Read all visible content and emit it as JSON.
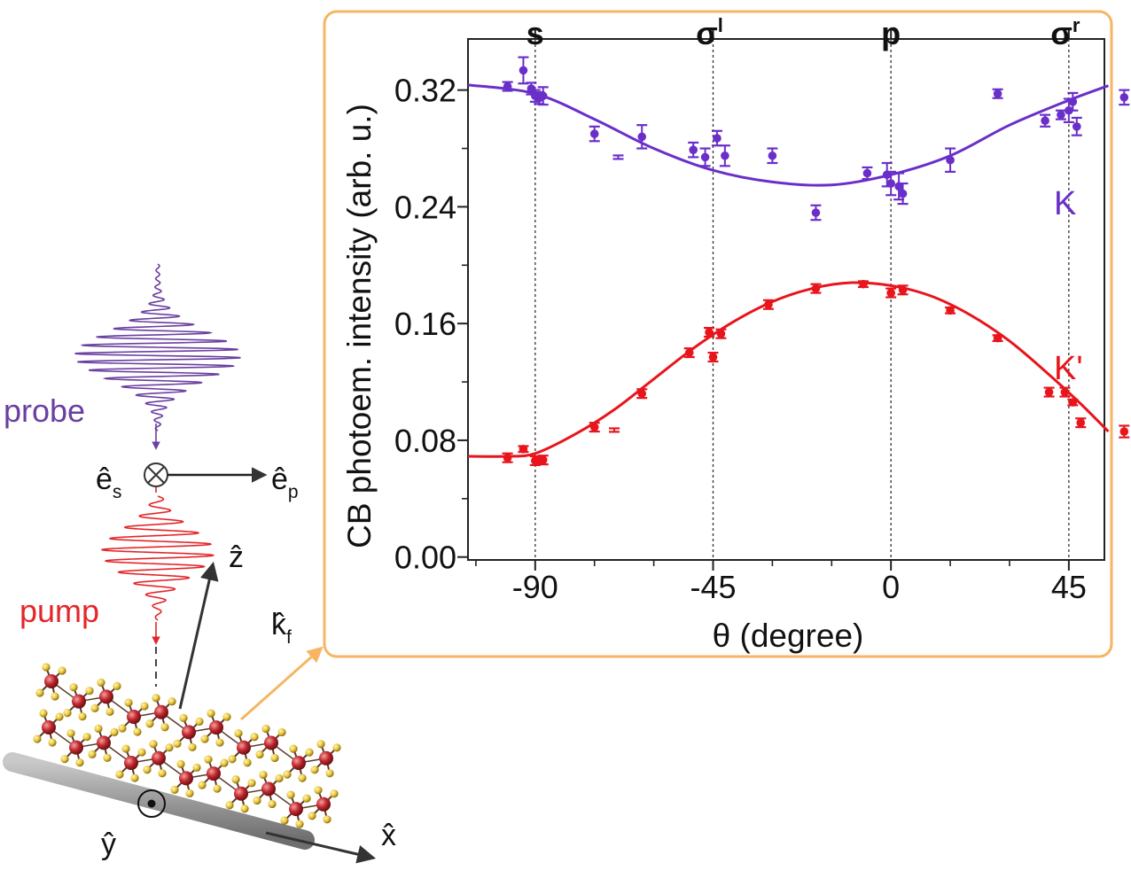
{
  "schematic": {
    "probe_label": "probe",
    "pump_label": "pump",
    "es_label": "ê",
    "es_sub": "s",
    "ep_label": "ê",
    "ep_sub": "p",
    "z_label": "ẑ",
    "kf_label": "k̂",
    "kf_sub": "f",
    "x_label": "x̂",
    "y_label": "ŷ",
    "colors": {
      "probe": "#6a3fa0",
      "pump": "#e3262a",
      "arrow": "#333333",
      "inset_frame": "#f7b563",
      "substrate": "#9a9a9a",
      "atom_red": "#c0272d",
      "atom_yellow": "#e8c436"
    }
  },
  "chart_data": {
    "type": "scatter",
    "xlabel": "θ (degree)",
    "ylabel": "CB photoem. intensity (arb. u.)",
    "xlim": [
      -107,
      54
    ],
    "ylim": [
      -0.002,
      0.355
    ],
    "xticks": [
      -90,
      -45,
      0,
      45
    ],
    "xtick_labels": [
      "-90",
      "-45",
      "0",
      "45"
    ],
    "yticks": [
      0.0,
      0.08,
      0.16,
      0.24,
      0.32
    ],
    "ytick_labels": [
      "0.00",
      "0.08",
      "0.16",
      "0.24",
      "0.32"
    ],
    "grid": false,
    "polarization_markers": [
      {
        "label": "s",
        "sup": "",
        "x": -90
      },
      {
        "label": "σ",
        "sup": "l",
        "x": -45
      },
      {
        "label": "p",
        "sup": "",
        "x": 0
      },
      {
        "label": "σ",
        "sup": "r",
        "x": 45
      }
    ],
    "series": [
      {
        "name": "K",
        "color": "#6a2fc9",
        "points": [
          {
            "x": -97,
            "y": 0.3225,
            "err": 0.003
          },
          {
            "x": -93,
            "y": 0.3335,
            "err": 0.009
          },
          {
            "x": -91,
            "y": 0.321,
            "err": 0.004
          },
          {
            "x": -90,
            "y": 0.316,
            "err": 0.004
          },
          {
            "x": -89,
            "y": 0.3145,
            "err": 0.004
          },
          {
            "x": -88,
            "y": 0.316,
            "err": 0.006
          },
          {
            "x": -75,
            "y": 0.29,
            "err": 0.005
          },
          {
            "x": -69,
            "y": 0.274,
            "err": 0.001
          },
          {
            "x": -63,
            "y": 0.288,
            "err": 0.008
          },
          {
            "x": -50,
            "y": 0.279,
            "err": 0.005
          },
          {
            "x": -47,
            "y": 0.274,
            "err": 0.006
          },
          {
            "x": -44,
            "y": 0.287,
            "err": 0.005
          },
          {
            "x": -42,
            "y": 0.275,
            "err": 0.007
          },
          {
            "x": -30,
            "y": 0.275,
            "err": 0.005
          },
          {
            "x": -19,
            "y": 0.236,
            "err": 0.005
          },
          {
            "x": -6,
            "y": 0.263,
            "err": 0.004
          },
          {
            "x": -1,
            "y": 0.262,
            "err": 0.008
          },
          {
            "x": 0,
            "y": 0.256,
            "err": 0.008
          },
          {
            "x": 2,
            "y": 0.254,
            "err": 0.009
          },
          {
            "x": 3,
            "y": 0.249,
            "err": 0.007
          },
          {
            "x": 15,
            "y": 0.272,
            "err": 0.008
          },
          {
            "x": 27,
            "y": 0.3175,
            "err": 0.003
          },
          {
            "x": 39,
            "y": 0.299,
            "err": 0.004
          },
          {
            "x": 43,
            "y": 0.303,
            "err": 0.003
          },
          {
            "x": 45,
            "y": 0.306,
            "err": 0.008
          },
          {
            "x": 46,
            "y": 0.312,
            "err": 0.006
          },
          {
            "x": 47,
            "y": 0.295,
            "err": 0.006
          },
          {
            "x": 59,
            "y": 0.315,
            "err": 0.005
          }
        ],
        "fit": [
          {
            "x": -107,
            "y": 0.3235
          },
          {
            "x": -90,
            "y": 0.3175
          },
          {
            "x": -75,
            "y": 0.3
          },
          {
            "x": -60,
            "y": 0.28
          },
          {
            "x": -45,
            "y": 0.265
          },
          {
            "x": -30,
            "y": 0.257
          },
          {
            "x": -15,
            "y": 0.255
          },
          {
            "x": 0,
            "y": 0.262
          },
          {
            "x": 15,
            "y": 0.275
          },
          {
            "x": 30,
            "y": 0.296
          },
          {
            "x": 45,
            "y": 0.313
          },
          {
            "x": 55,
            "y": 0.323
          }
        ],
        "label_text": "K"
      },
      {
        "name": "K'",
        "color": "#e8151c",
        "points": [
          {
            "x": -97,
            "y": 0.068,
            "err": 0.003
          },
          {
            "x": -93,
            "y": 0.074,
            "err": 0.002
          },
          {
            "x": -90,
            "y": 0.066,
            "err": 0.003
          },
          {
            "x": -89,
            "y": 0.067,
            "err": 0.002
          },
          {
            "x": -88,
            "y": 0.0665,
            "err": 0.003
          },
          {
            "x": -75,
            "y": 0.089,
            "err": 0.003
          },
          {
            "x": -70,
            "y": 0.087,
            "err": 0.001
          },
          {
            "x": -63,
            "y": 0.112,
            "err": 0.003
          },
          {
            "x": -51,
            "y": 0.14,
            "err": 0.003
          },
          {
            "x": -46,
            "y": 0.154,
            "err": 0.003
          },
          {
            "x": -45,
            "y": 0.137,
            "err": 0.003
          },
          {
            "x": -43,
            "y": 0.153,
            "err": 0.003
          },
          {
            "x": -31,
            "y": 0.173,
            "err": 0.003
          },
          {
            "x": -19,
            "y": 0.184,
            "err": 0.003
          },
          {
            "x": -7,
            "y": 0.187,
            "err": 0.002
          },
          {
            "x": 0,
            "y": 0.181,
            "err": 0.003
          },
          {
            "x": 3,
            "y": 0.183,
            "err": 0.003
          },
          {
            "x": 15,
            "y": 0.169,
            "err": 0.002
          },
          {
            "x": 27,
            "y": 0.15,
            "err": 0.002
          },
          {
            "x": 40,
            "y": 0.113,
            "err": 0.003
          },
          {
            "x": 44,
            "y": 0.113,
            "err": 0.003
          },
          {
            "x": 46,
            "y": 0.106,
            "err": 0.002
          },
          {
            "x": 48,
            "y": 0.092,
            "err": 0.003
          },
          {
            "x": 59,
            "y": 0.086,
            "err": 0.004
          }
        ],
        "fit": [
          {
            "x": -107,
            "y": 0.069
          },
          {
            "x": -97,
            "y": 0.069
          },
          {
            "x": -90,
            "y": 0.071
          },
          {
            "x": -80,
            "y": 0.084
          },
          {
            "x": -70,
            "y": 0.101
          },
          {
            "x": -60,
            "y": 0.122
          },
          {
            "x": -50,
            "y": 0.143
          },
          {
            "x": -40,
            "y": 0.161
          },
          {
            "x": -30,
            "y": 0.175
          },
          {
            "x": -20,
            "y": 0.184
          },
          {
            "x": -10,
            "y": 0.188
          },
          {
            "x": 0,
            "y": 0.186
          },
          {
            "x": 10,
            "y": 0.179
          },
          {
            "x": 20,
            "y": 0.166
          },
          {
            "x": 30,
            "y": 0.148
          },
          {
            "x": 40,
            "y": 0.125
          },
          {
            "x": 48,
            "y": 0.105
          },
          {
            "x": 55,
            "y": 0.086
          }
        ],
        "label_text": "K'"
      }
    ]
  }
}
